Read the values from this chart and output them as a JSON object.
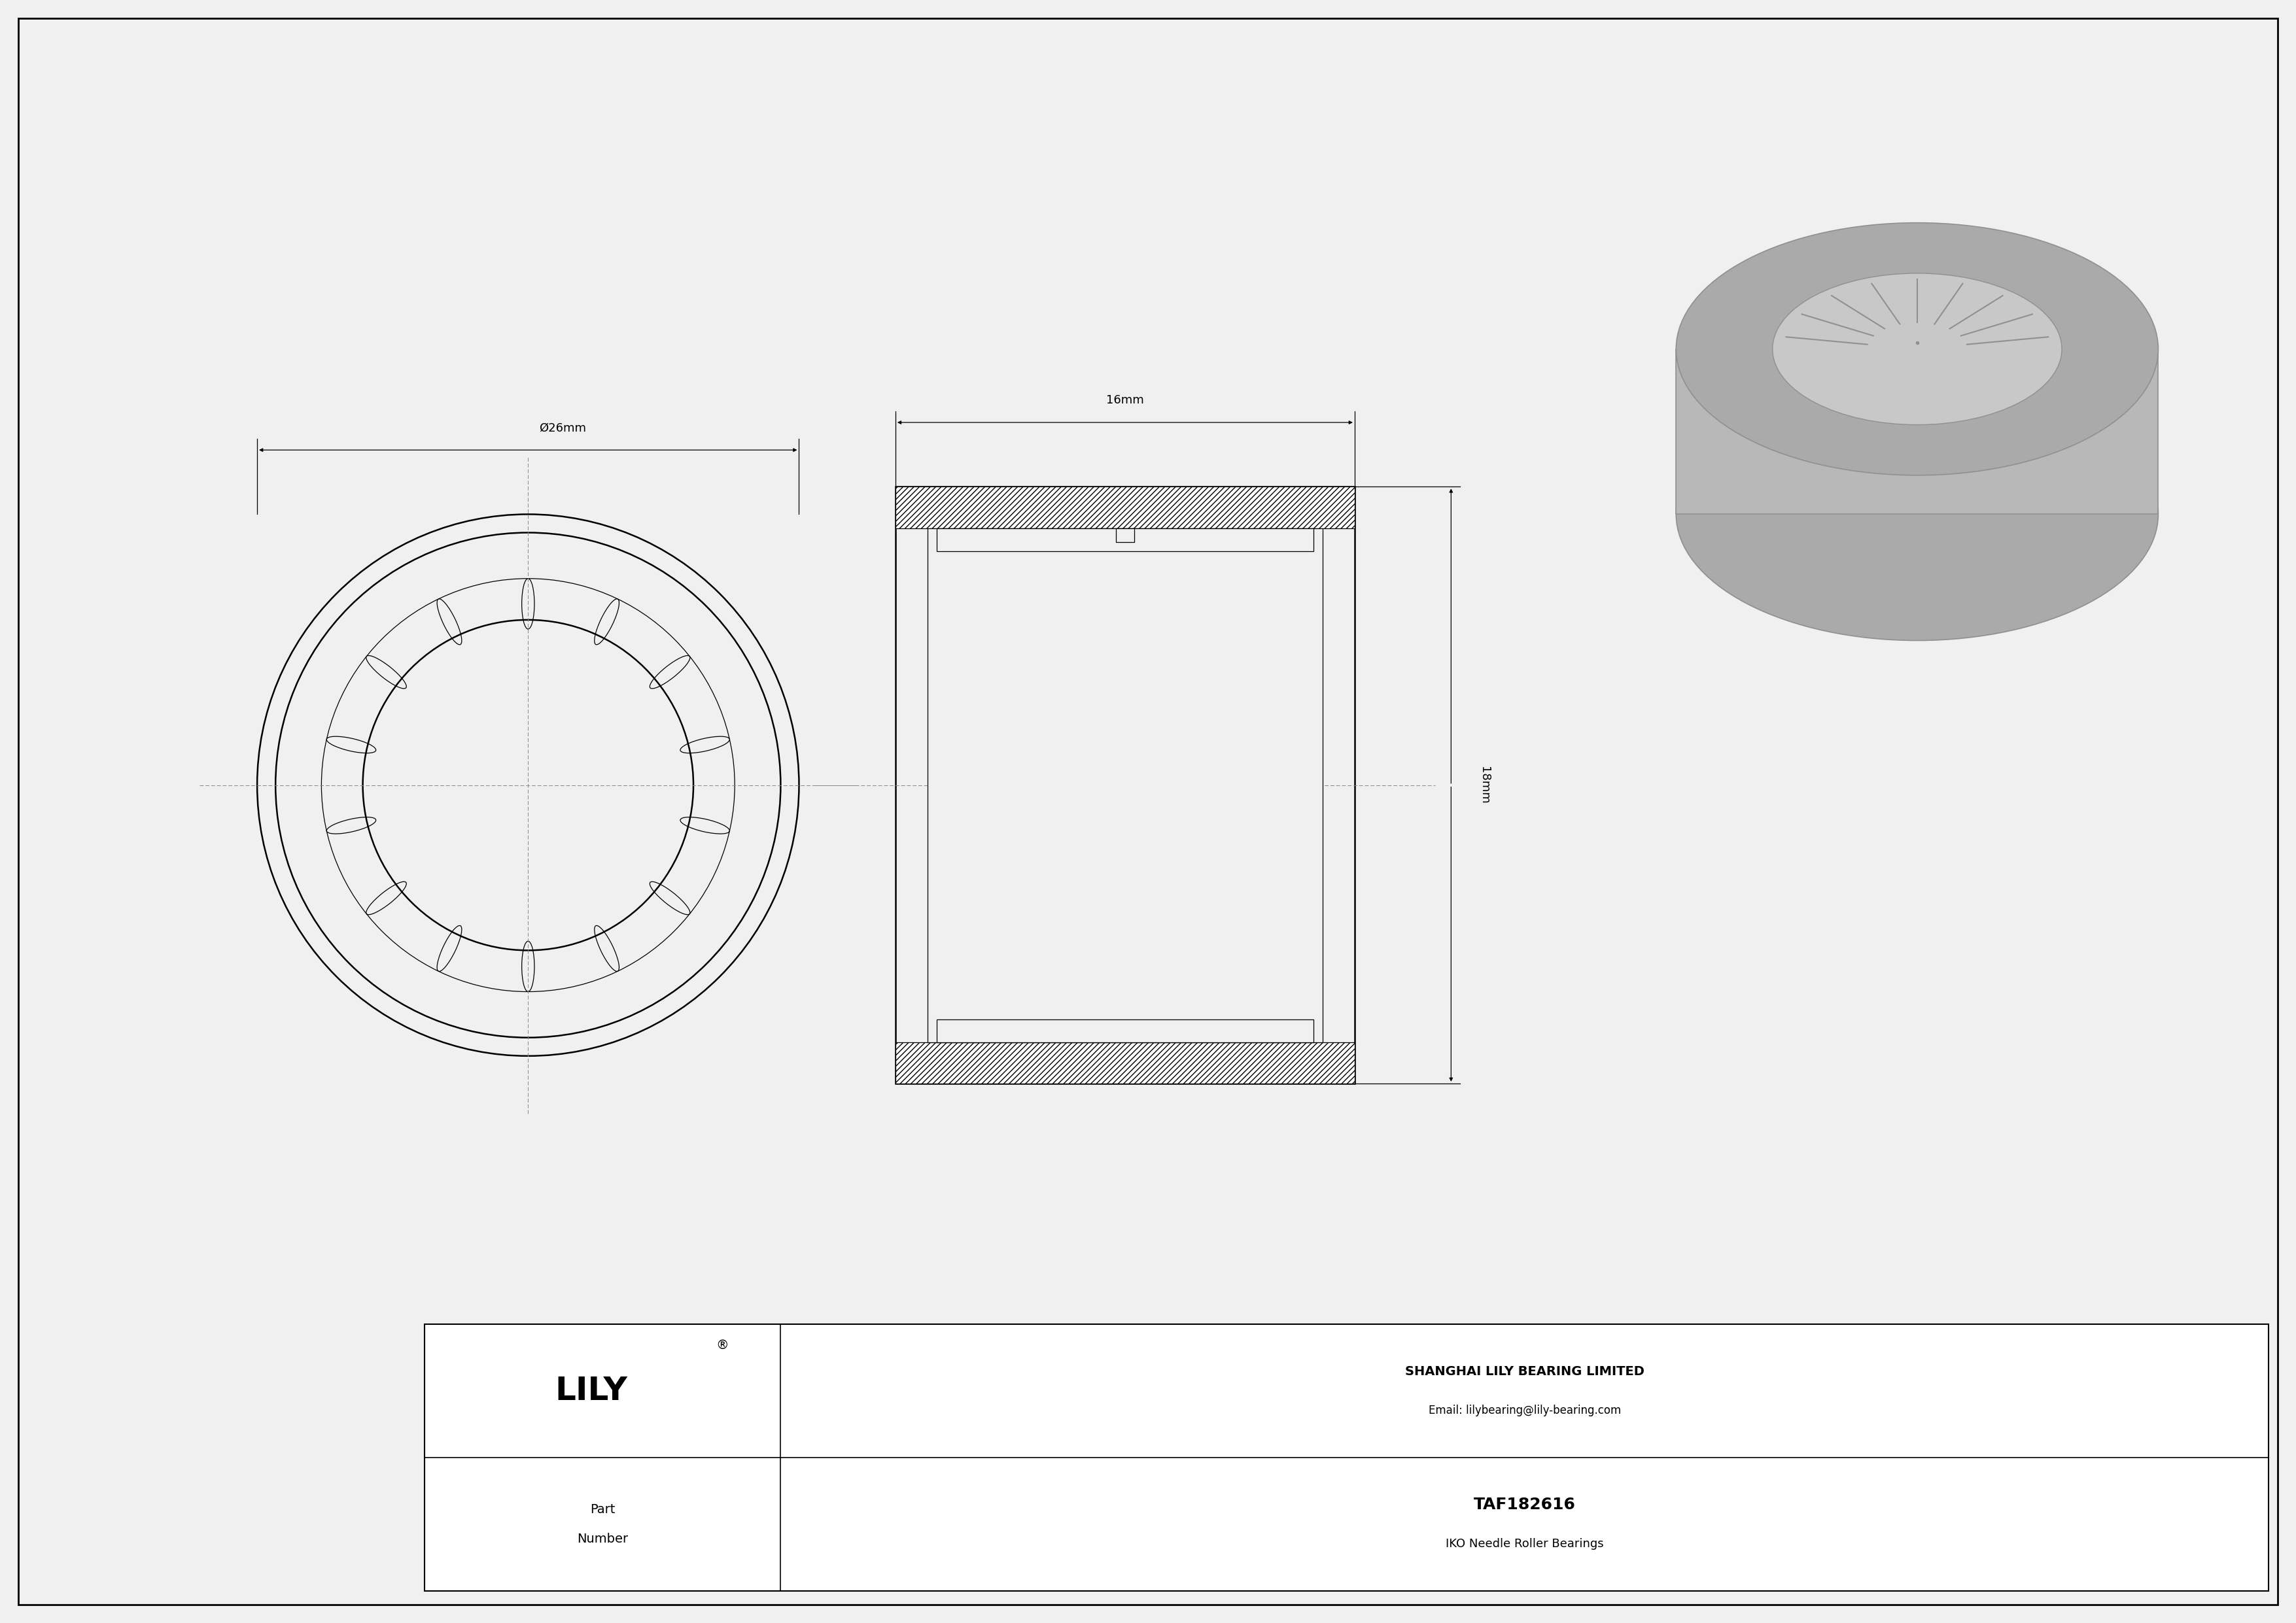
{
  "bg_color": "#f0f0f0",
  "draw_bg": "#f0f0f0",
  "line_color": "#000000",
  "dash_color": "#888888",
  "dim_color": "#000000",
  "part_number": "TAF182616",
  "bearing_type": "IKO Needle Roller Bearings",
  "company": "SHANGHAI LILY BEARING LIMITED",
  "email": "Email: lilybearing@lily-bearing.com",
  "lily_text": "LILY",
  "dim_od": "Ø26mm",
  "dim_width": "16mm",
  "dim_height": "18mm",
  "gray1": "#aaaaaa",
  "gray2": "#b8b8b8",
  "gray3": "#c8c8c8",
  "gray4": "#909090",
  "gray5": "#d8d8d8"
}
